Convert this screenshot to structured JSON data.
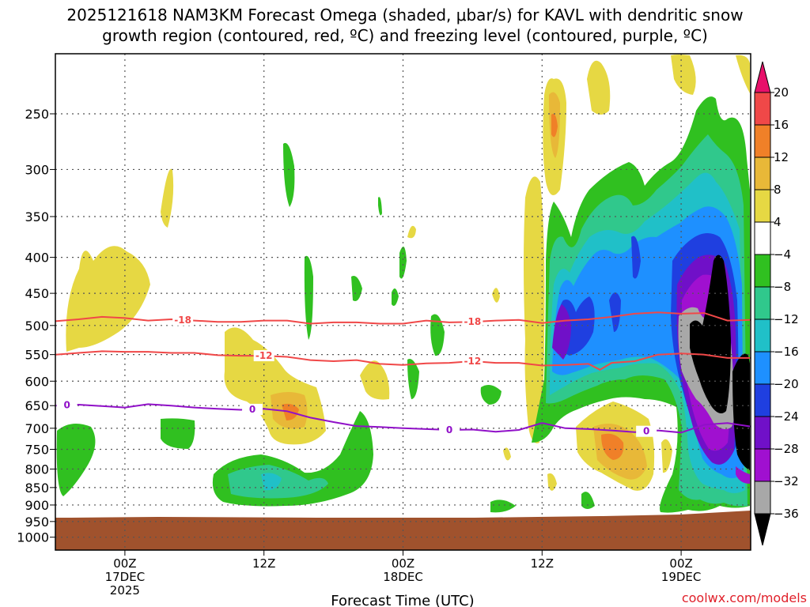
{
  "title_line1": "2025121618 NAM3KM Forecast Omega (shaded, μbar/s) for KAVL with dendritic snow",
  "title_line2": "growth region (contoured, red, ºC) and freezing level (contoured, purple, ºC)",
  "credit": "coolwx.com/models",
  "chart_data": {
    "type": "heatmap",
    "xlabel": "Forecast Time (UTC)",
    "y_ticks": [
      "250",
      "300",
      "350",
      "400",
      "450",
      "500",
      "550",
      "600",
      "650",
      "700",
      "750",
      "800",
      "850",
      "900",
      "950",
      "1000"
    ],
    "y_tick_values": [
      250,
      300,
      350,
      400,
      450,
      500,
      550,
      600,
      650,
      700,
      750,
      800,
      850,
      900,
      950,
      1000
    ],
    "y_scale": "log-pressure (inverted)",
    "ylim": [
      1000,
      200
    ],
    "x_ticks": [
      {
        "l1": "00Z",
        "l2": "17DEC",
        "l3": "2025"
      },
      {
        "l1": "12Z",
        "l2": "",
        "l3": ""
      },
      {
        "l1": "00Z",
        "l2": "18DEC",
        "l3": ""
      },
      {
        "l1": "12Z",
        "l2": "",
        "l3": ""
      },
      {
        "l1": "00Z",
        "l2": "19DEC",
        "l3": ""
      }
    ],
    "x_tick_hours": [
      6,
      18,
      30,
      42,
      54
    ],
    "xlim_hours": [
      0,
      60
    ],
    "grid": true,
    "colorbar": {
      "labels": [
        "20",
        "16",
        "12",
        "8",
        "4",
        "−4",
        "−8",
        "−12",
        "−16",
        "−20",
        "−24",
        "−28",
        "−32",
        "−36"
      ],
      "bins": [
        {
          "range": ">20",
          "color": "#e8106a"
        },
        {
          "range": "16 to 20",
          "color": "#f04848"
        },
        {
          "range": "12 to 16",
          "color": "#f08028"
        },
        {
          "range": "8 to 12",
          "color": "#e8b838"
        },
        {
          "range": "4 to 8",
          "color": "#e6d843"
        },
        {
          "range": "-4 to 4",
          "color": "#ffffff"
        },
        {
          "range": "-8 to -4",
          "color": "#30c020"
        },
        {
          "range": "-12 to -8",
          "color": "#30c88c"
        },
        {
          "range": "-16 to -12",
          "color": "#20c0c8"
        },
        {
          "range": "-20 to -16",
          "color": "#1e90ff"
        },
        {
          "range": "-24 to -20",
          "color": "#1f3fe0"
        },
        {
          "range": "-28 to -24",
          "color": "#7010c8"
        },
        {
          "range": "-32 to -28",
          "color": "#a010d0"
        },
        {
          "range": "-36 to -32",
          "color": "#a8a8a8"
        },
        {
          "range": "<-36",
          "color": "#000000"
        }
      ]
    },
    "terrain_color": "#a0522d",
    "contours": [
      {
        "label": "-18",
        "color": "#f04848",
        "points": [
          [
            0,
            493
          ],
          [
            2,
            490
          ],
          [
            4,
            486
          ],
          [
            6,
            488
          ],
          [
            8,
            492
          ],
          [
            10,
            490
          ],
          [
            12,
            492
          ],
          [
            14,
            494
          ],
          [
            16,
            494
          ],
          [
            18,
            492
          ],
          [
            20,
            492
          ],
          [
            22,
            497
          ],
          [
            24,
            495
          ],
          [
            26,
            495
          ],
          [
            28,
            497
          ],
          [
            30,
            497
          ],
          [
            32,
            492
          ],
          [
            34,
            495
          ],
          [
            36,
            494
          ],
          [
            38,
            492
          ],
          [
            40,
            491
          ],
          [
            42,
            496
          ],
          [
            44,
            492
          ],
          [
            46,
            490
          ],
          [
            48,
            486
          ],
          [
            50,
            481
          ],
          [
            52,
            479
          ],
          [
            54,
            481
          ],
          [
            56,
            480
          ],
          [
            58,
            492
          ],
          [
            60,
            491
          ]
        ],
        "label_hours": [
          11,
          36
        ]
      },
      {
        "label": "-12",
        "color": "#f04848",
        "points": [
          [
            0,
            550
          ],
          [
            2,
            547
          ],
          [
            4,
            544
          ],
          [
            6,
            545
          ],
          [
            8,
            545
          ],
          [
            10,
            547
          ],
          [
            12,
            547
          ],
          [
            14,
            551
          ],
          [
            16,
            552
          ],
          [
            18,
            552
          ],
          [
            20,
            554
          ],
          [
            22,
            560
          ],
          [
            24,
            562
          ],
          [
            26,
            560
          ],
          [
            28,
            567
          ],
          [
            30,
            569
          ],
          [
            32,
            566
          ],
          [
            34,
            565
          ],
          [
            36,
            562
          ],
          [
            38,
            565
          ],
          [
            40,
            565
          ],
          [
            42,
            570
          ],
          [
            44,
            569
          ],
          [
            46,
            567
          ],
          [
            47,
            578
          ],
          [
            48,
            565
          ],
          [
            50,
            562
          ],
          [
            52,
            550
          ],
          [
            54,
            548
          ],
          [
            56,
            550
          ],
          [
            58,
            556
          ],
          [
            60,
            556
          ]
        ],
        "label_hours": [
          18,
          36
        ]
      },
      {
        "label": "0",
        "color": "#9010c8",
        "points": [
          [
            0,
            650
          ],
          [
            2,
            648
          ],
          [
            4,
            651
          ],
          [
            6,
            654
          ],
          [
            8,
            647
          ],
          [
            10,
            650
          ],
          [
            12,
            654
          ],
          [
            14,
            657
          ],
          [
            16,
            659
          ],
          [
            18,
            657
          ],
          [
            20,
            662
          ],
          [
            22,
            676
          ],
          [
            24,
            686
          ],
          [
            26,
            695
          ],
          [
            28,
            697
          ],
          [
            30,
            700
          ],
          [
            32,
            702
          ],
          [
            34,
            704
          ],
          [
            36,
            703
          ],
          [
            38,
            708
          ],
          [
            40,
            704
          ],
          [
            42,
            688
          ],
          [
            44,
            700
          ],
          [
            46,
            702
          ],
          [
            48,
            705
          ],
          [
            50,
            709
          ],
          [
            52,
            705
          ],
          [
            54,
            710
          ],
          [
            56,
            692
          ],
          [
            58,
            688
          ],
          [
            60,
            696
          ]
        ],
        "label_hours": [
          1,
          17,
          34,
          51
        ]
      }
    ]
  },
  "colors": {
    "grid": "#555555",
    "frame": "#000000"
  }
}
